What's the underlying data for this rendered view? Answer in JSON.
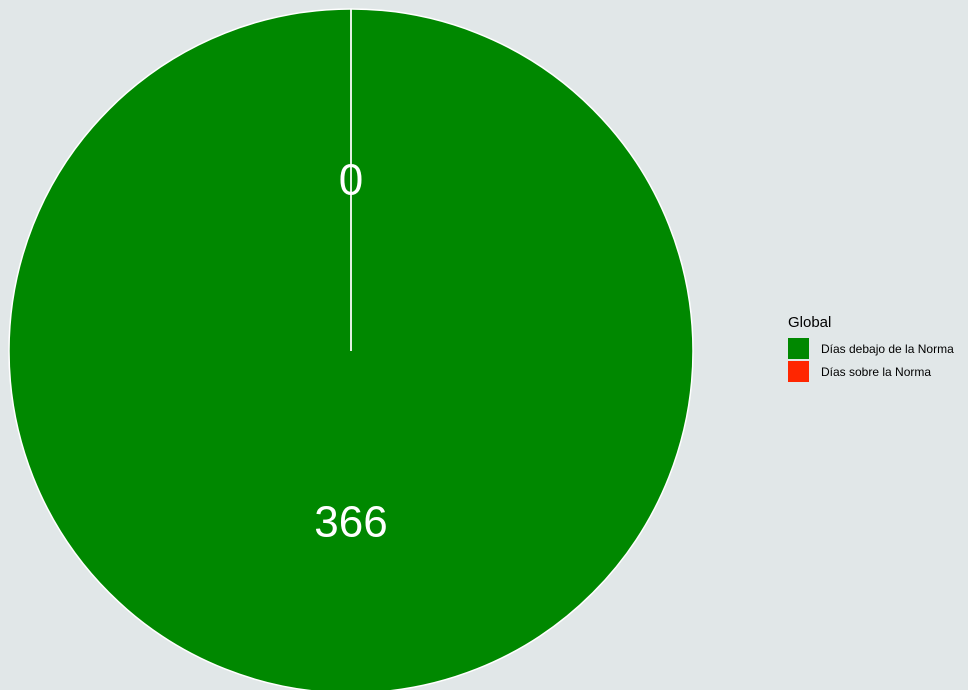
{
  "chart_data": {
    "type": "pie",
    "legend_title": "Global",
    "legend_position": "right",
    "slices": [
      {
        "label": "Días debajo de la Norma",
        "value": 366,
        "color": "#008800"
      },
      {
        "label": "Días sobre la Norma",
        "value": 0,
        "color": "#ff2600"
      }
    ],
    "data_labels": [
      "366",
      "0"
    ],
    "background": "#e1e7e8",
    "slice_border_color": "#ffffff"
  }
}
